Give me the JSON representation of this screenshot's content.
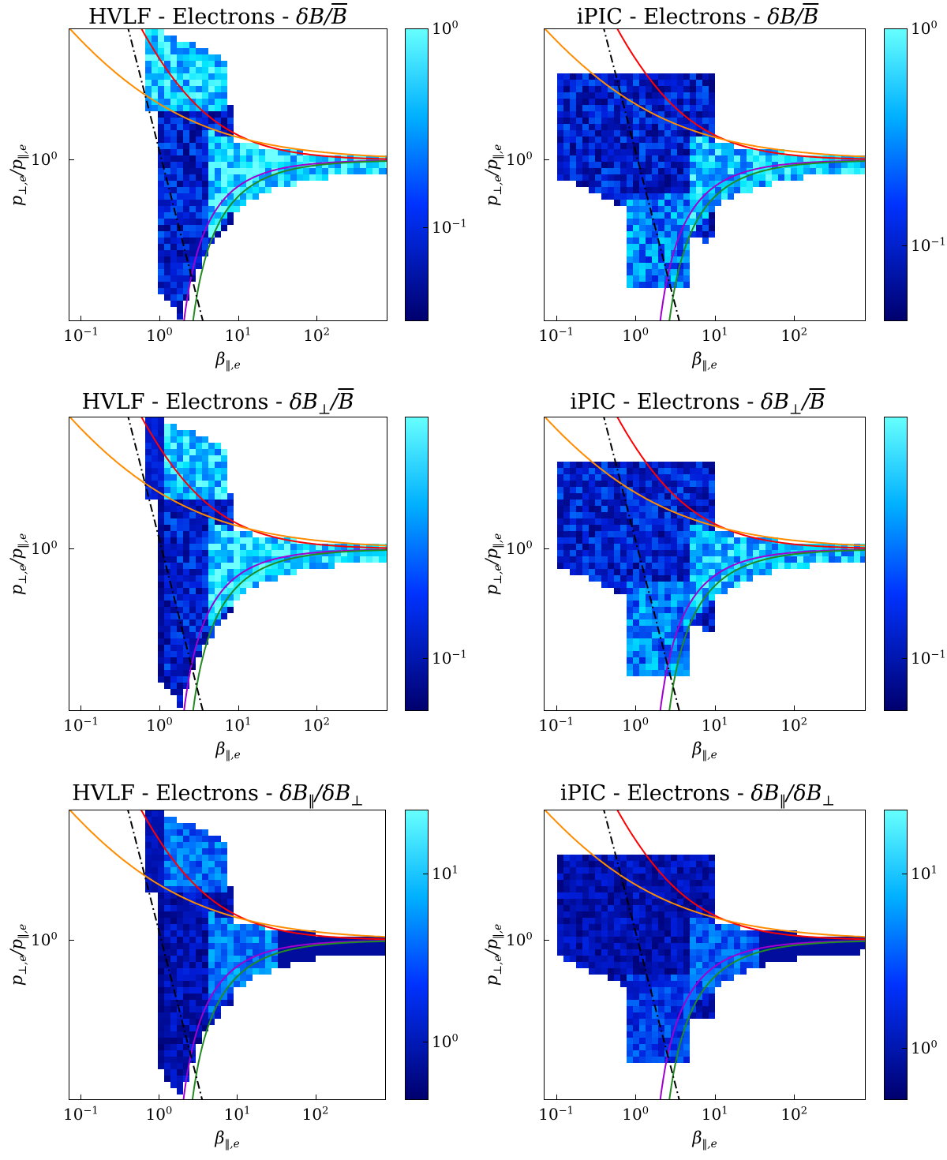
{
  "colors": {
    "cmap_low": "#00006e",
    "cmap_mid": "#0033ff",
    "cmap_high": "#66ffff",
    "red_curve": "#ff0000",
    "orange_curve": "#ff8c00",
    "purple_curve": "#a000d0",
    "green_curve": "#228b22",
    "dashdot_curve": "#000000"
  },
  "axes": {
    "xlabel": "β‖,e",
    "ylabel": "p⊥,e/p‖,e",
    "xticks": [
      "10−1",
      "100",
      "101",
      "102"
    ],
    "yticks": [
      "100"
    ]
  },
  "chart_data": [
    {
      "type": "heatmap",
      "title": "HVLF - Electrons - δB/B̄",
      "colorbar_ticks": [
        "100",
        "10−1"
      ],
      "xscale": "log",
      "yscale": "log",
      "xlim": [
        0.07,
        800
      ],
      "ylim": [
        0.28,
        2.8
      ]
    },
    {
      "type": "heatmap",
      "title": "iPIC - Electrons - δB/B̄",
      "colorbar_ticks": [
        "100",
        "10−1"
      ],
      "xscale": "log",
      "yscale": "log",
      "xlim": [
        0.07,
        800
      ],
      "ylim": [
        0.28,
        2.8
      ]
    },
    {
      "type": "heatmap",
      "title": "HVLF - Electrons - δB⊥/B̄",
      "colorbar_ticks": [
        "10−1"
      ],
      "xscale": "log",
      "yscale": "log",
      "xlim": [
        0.07,
        800
      ],
      "ylim": [
        0.28,
        2.8
      ]
    },
    {
      "type": "heatmap",
      "title": "iPIC - Electrons - δB⊥/B̄",
      "colorbar_ticks": [
        "10−1"
      ],
      "xscale": "log",
      "yscale": "log",
      "xlim": [
        0.07,
        800
      ],
      "ylim": [
        0.28,
        2.8
      ]
    },
    {
      "type": "heatmap",
      "title": "HVLF - Electrons - δB‖/δB⊥",
      "colorbar_ticks": [
        "101",
        "100"
      ],
      "xscale": "log",
      "yscale": "log",
      "xlim": [
        0.07,
        800
      ],
      "ylim": [
        0.28,
        2.8
      ]
    },
    {
      "type": "heatmap",
      "title": "iPIC - Electrons - δB‖/δB⊥",
      "colorbar_ticks": [
        "101",
        "100"
      ],
      "xscale": "log",
      "yscale": "log",
      "xlim": [
        0.07,
        800
      ],
      "ylim": [
        0.28,
        2.8
      ]
    }
  ]
}
